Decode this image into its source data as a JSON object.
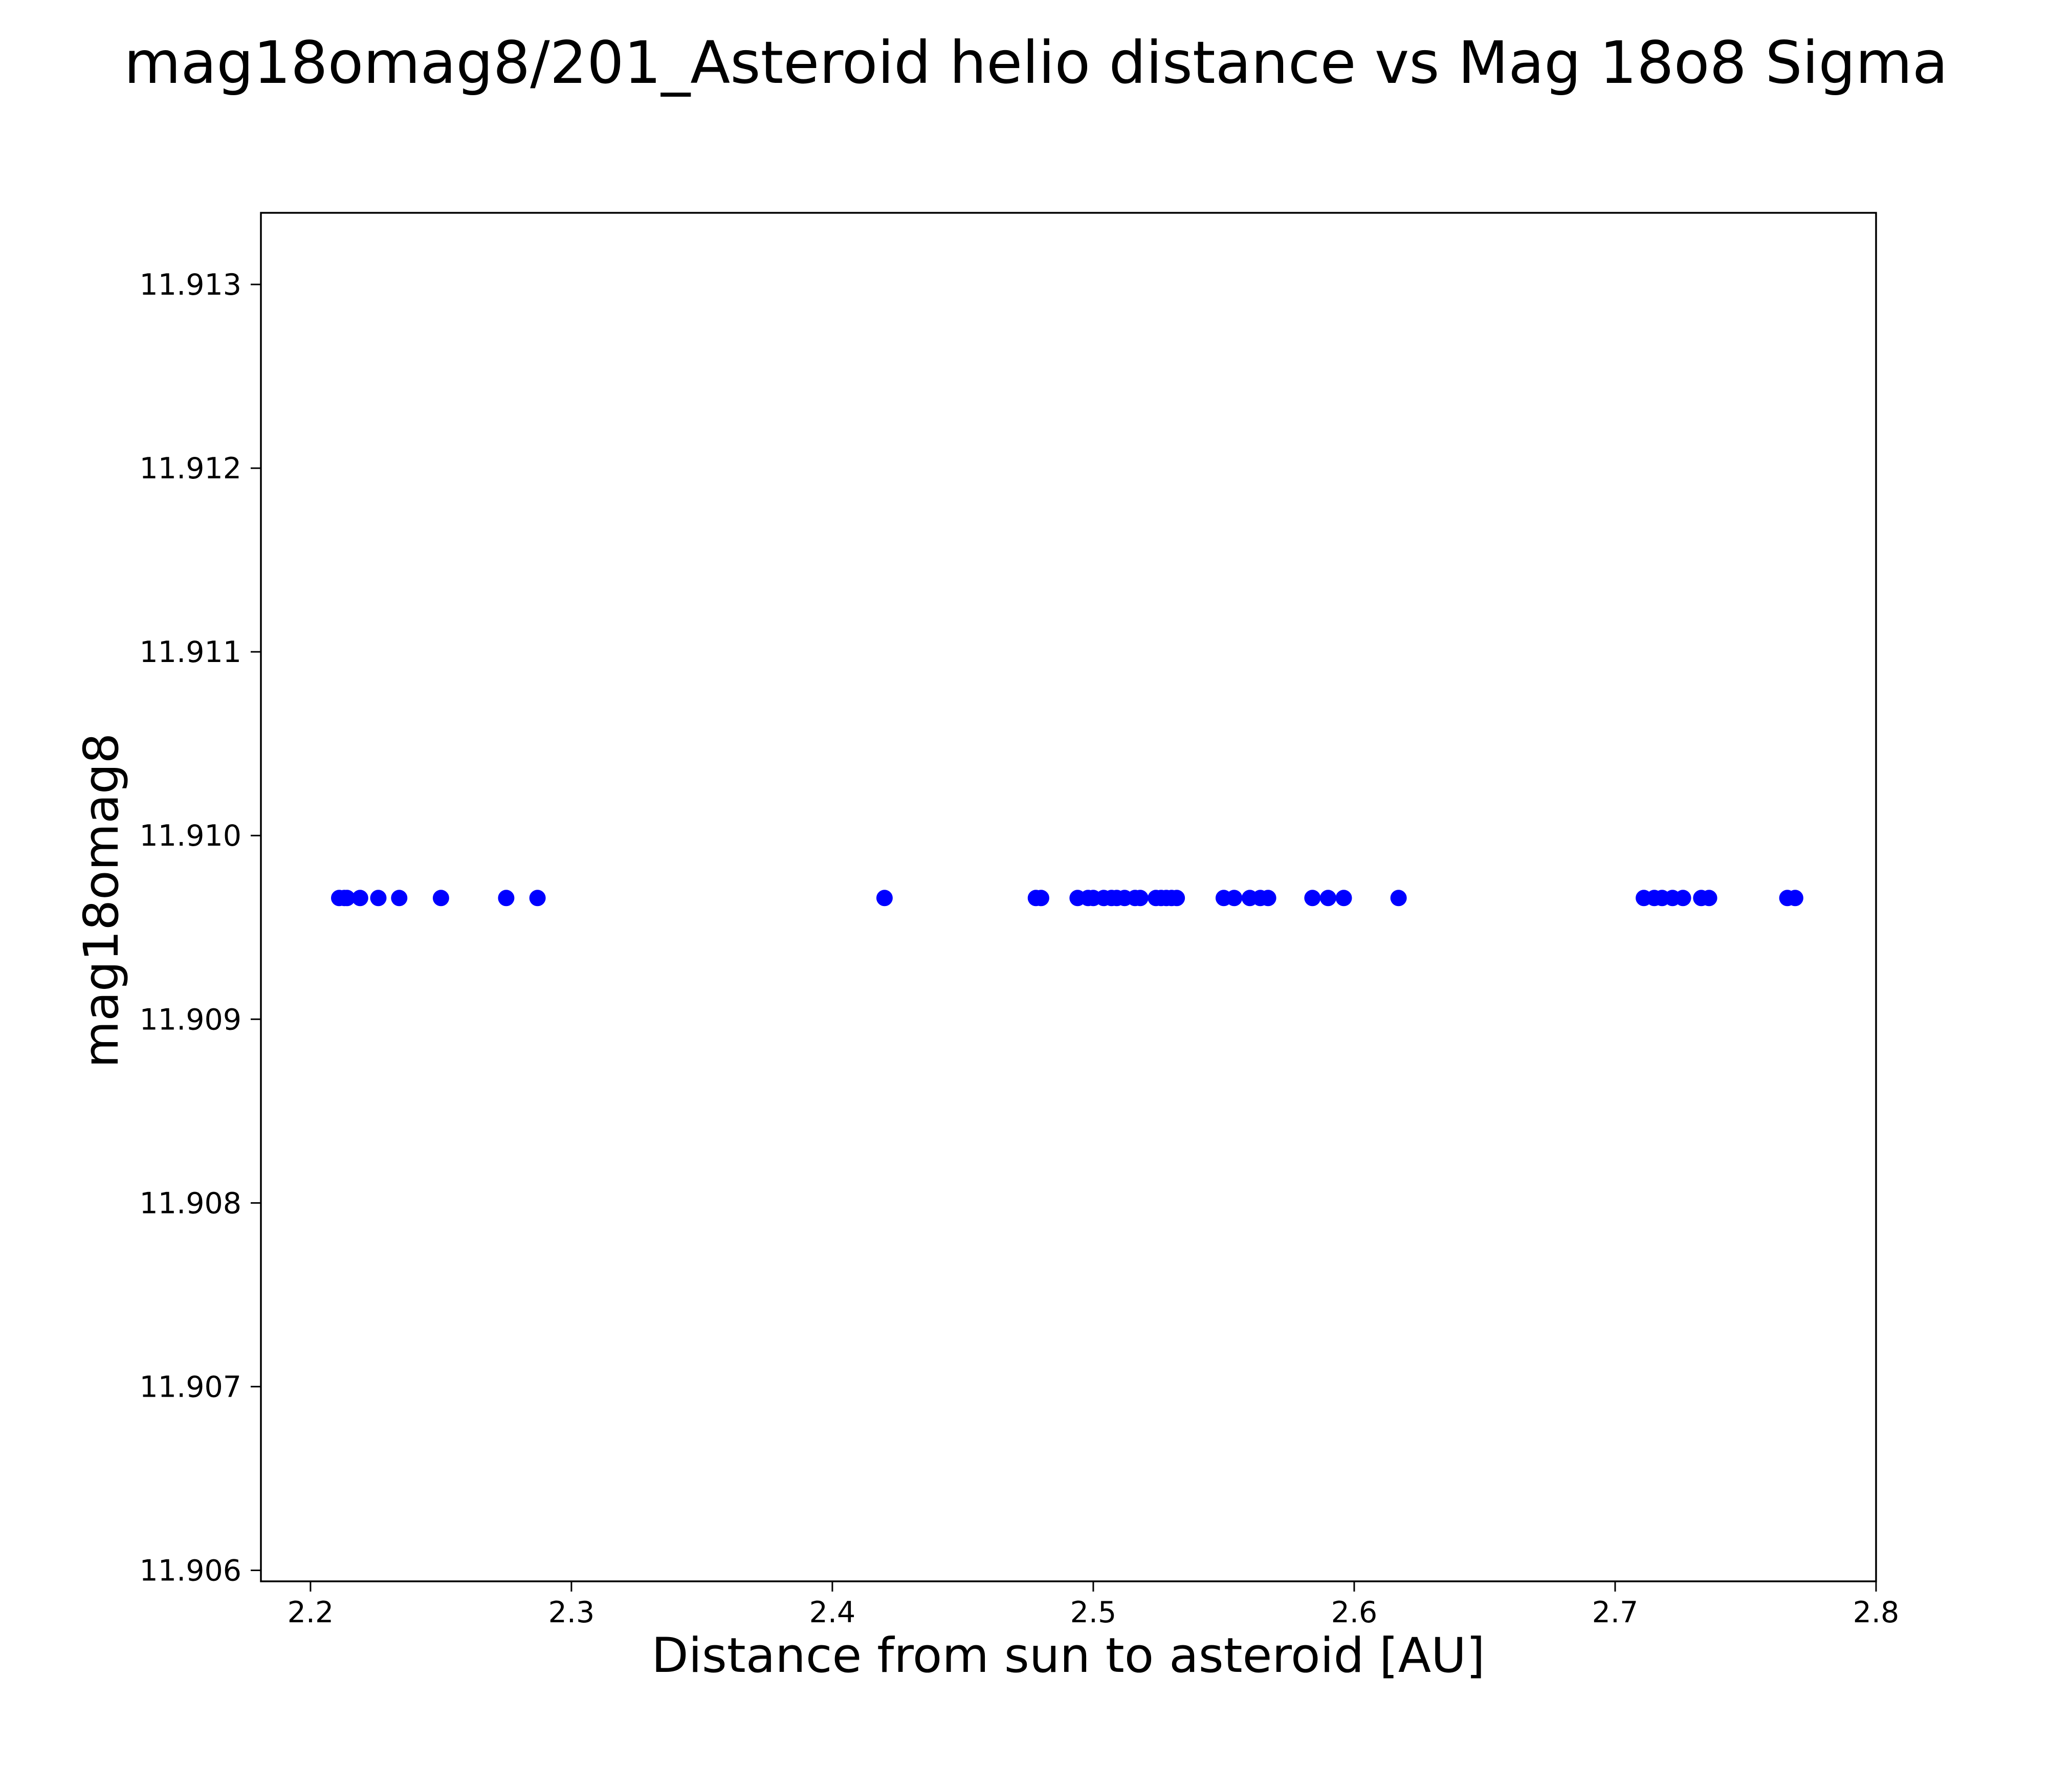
{
  "chart_data": {
    "type": "scatter",
    "title": "mag18omag8/201_Asteroid helio distance vs Mag 18o8 Sigma",
    "xlabel": "Distance from sun to asteroid [AU]",
    "ylabel": "mag18omag8",
    "xlim": [
      2.181,
      2.8
    ],
    "ylim": [
      11.90594,
      11.91339
    ],
    "x_ticks": [
      "2.2",
      "2.3",
      "2.4",
      "2.5",
      "2.6",
      "2.7",
      "2.8"
    ],
    "y_ticks": [
      "11.906",
      "11.907",
      "11.908",
      "11.909",
      "11.910",
      "11.911",
      "11.912",
      "11.913"
    ],
    "grid": false,
    "legend": "none",
    "marker_color": "#0000ff",
    "series": [
      {
        "x": [
          2.211,
          2.213,
          2.214,
          2.219,
          2.226,
          2.234,
          2.25,
          2.275,
          2.287,
          2.42,
          2.478,
          2.48,
          2.494,
          2.498,
          2.5,
          2.504,
          2.507,
          2.509,
          2.512,
          2.516,
          2.518,
          2.524,
          2.526,
          2.528,
          2.53,
          2.532,
          2.55,
          2.554,
          2.56,
          2.564,
          2.567,
          2.584,
          2.59,
          2.596,
          2.617,
          2.711,
          2.715,
          2.718,
          2.722,
          2.726,
          2.733,
          2.736,
          2.766,
          2.769
        ],
        "y": [
          11.90966,
          11.90966,
          11.90966,
          11.90966,
          11.90966,
          11.90966,
          11.90966,
          11.90966,
          11.90966,
          11.90966,
          11.90966,
          11.90966,
          11.90966,
          11.90966,
          11.90966,
          11.90966,
          11.90966,
          11.90966,
          11.90966,
          11.90966,
          11.90966,
          11.90966,
          11.90966,
          11.90966,
          11.90966,
          11.90966,
          11.90966,
          11.90966,
          11.90966,
          11.90966,
          11.90966,
          11.90966,
          11.90966,
          11.90966,
          11.90966,
          11.90966,
          11.90966,
          11.90966,
          11.90966,
          11.90966,
          11.90966,
          11.90966,
          11.90966,
          11.90966
        ]
      }
    ]
  }
}
